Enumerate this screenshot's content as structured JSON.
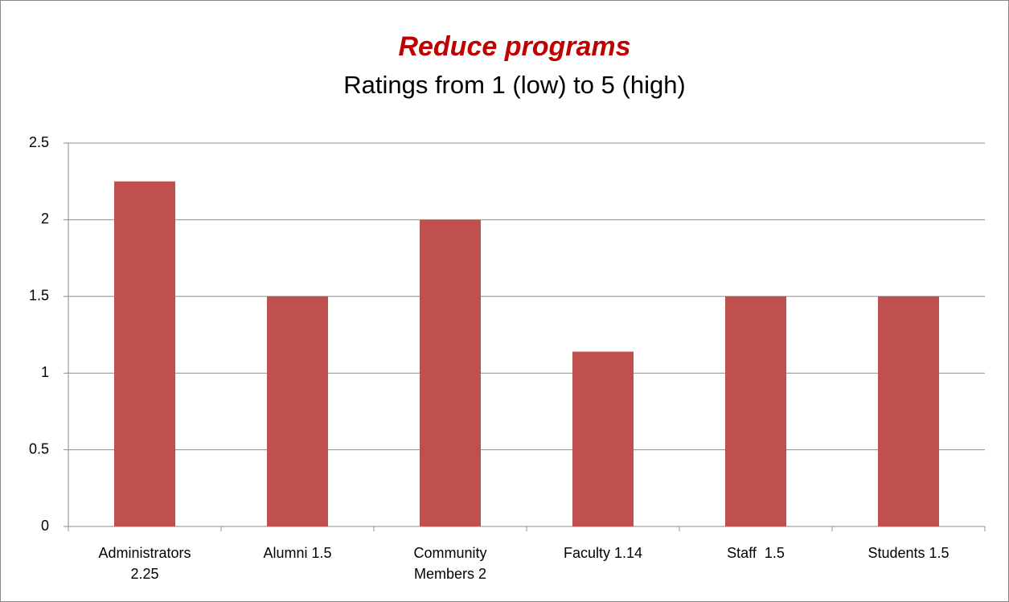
{
  "chart_data": {
    "type": "bar",
    "title": "Reduce programs",
    "subtitle": "Ratings from 1 (low) to 5 (high)",
    "categories": [
      "Administrators 2.25",
      "Alumni 1.5",
      "Community Members 2",
      "Faculty 1.14",
      "Staff  1.5",
      "Students 1.5"
    ],
    "values": [
      2.25,
      1.5,
      2,
      1.14,
      1.5,
      1.5
    ],
    "color": "#c0504d",
    "ylim": [
      0,
      2.5
    ],
    "yticks": [
      0,
      0.5,
      1,
      1.5,
      2,
      2.5
    ],
    "grid": true
  }
}
